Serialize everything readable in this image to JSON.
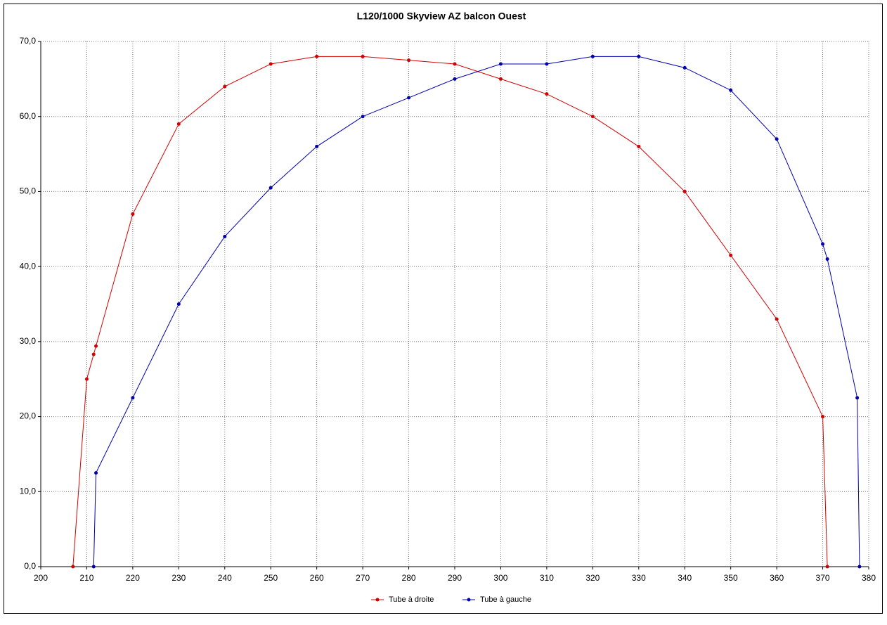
{
  "chart_data": {
    "type": "line",
    "title": "L120/1000 Skyview AZ balcon Ouest",
    "xlim": [
      200,
      380
    ],
    "xticks": [
      200,
      210,
      220,
      230,
      240,
      250,
      260,
      270,
      280,
      290,
      300,
      310,
      320,
      330,
      340,
      350,
      360,
      370,
      380
    ],
    "ylim": [
      0,
      70
    ],
    "yticks": [
      {
        "value": 0,
        "label": "0,0"
      },
      {
        "value": 10,
        "label": "10,0"
      },
      {
        "value": 20,
        "label": "20,0"
      },
      {
        "value": 30,
        "label": "30,0"
      },
      {
        "value": 40,
        "label": "40,0"
      },
      {
        "value": 50,
        "label": "50,0"
      },
      {
        "value": 60,
        "label": "60,0"
      },
      {
        "value": 70,
        "label": "70,0"
      }
    ],
    "grid": true,
    "legend": "bottom",
    "series": [
      {
        "name": "Tube à droite",
        "color": "#d40000",
        "x": [
          207,
          210,
          211.5,
          212,
          220,
          230,
          240,
          250,
          260,
          270,
          280,
          290,
          300,
          310,
          320,
          330,
          340,
          350,
          360,
          370,
          371
        ],
        "values": [
          0,
          25,
          28.3,
          29.4,
          47,
          59,
          64,
          67,
          68,
          68,
          67.5,
          67,
          65,
          63,
          60,
          56,
          50,
          41.5,
          33,
          20,
          0
        ]
      },
      {
        "name": "Tube à gauche",
        "color": "#0000b0",
        "x": [
          211.5,
          212,
          220,
          230,
          240,
          250,
          260,
          270,
          280,
          290,
          300,
          310,
          320,
          330,
          340,
          350,
          360,
          370,
          371,
          377.5,
          378
        ],
        "values": [
          0,
          12.5,
          22.5,
          35,
          44,
          50.5,
          56,
          60,
          62.5,
          65,
          67,
          67,
          68,
          68,
          66.5,
          63.5,
          57,
          43,
          41,
          22.5,
          0
        ]
      }
    ]
  }
}
